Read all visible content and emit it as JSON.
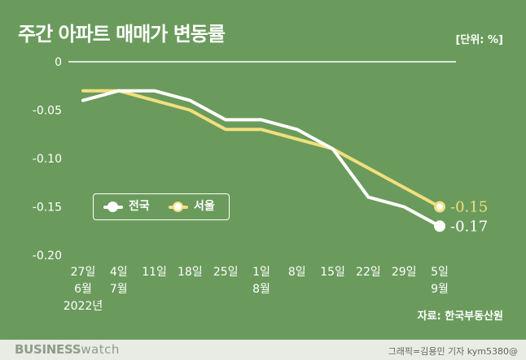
{
  "title": "주간 아파트 매매가 변동률",
  "unit_label": "[단위: %]",
  "source": "자료: 한국부동산원",
  "brand": {
    "bold": "BUSINESS",
    "light": "watch"
  },
  "credit": "그래픽=김용민 기자 kym5380@",
  "colors": {
    "background": "#6a9b5c",
    "national": "#ffffff",
    "seoul": "#f0df7e",
    "footer": "#e9ece4"
  },
  "chart_data": {
    "type": "line",
    "x_ticks": [
      [
        "27일",
        "6월",
        "2022년"
      ],
      [
        "4일",
        "7월"
      ],
      [
        "11일"
      ],
      [
        "18일"
      ],
      [
        "25일"
      ],
      [
        "1일",
        "8월"
      ],
      [
        "8일"
      ],
      [
        "15일"
      ],
      [
        "22일"
      ],
      [
        "29일"
      ],
      [
        "5일",
        "9월"
      ]
    ],
    "y_ticks": [
      "0",
      "-0.05",
      "-0.10",
      "-0.15",
      "-0.20"
    ],
    "ylim": [
      -0.2,
      0
    ],
    "series": [
      {
        "name": "전국",
        "color": "#ffffff",
        "values": [
          -0.04,
          -0.03,
          -0.03,
          -0.04,
          -0.06,
          -0.06,
          -0.07,
          -0.09,
          -0.14,
          -0.15,
          -0.17
        ],
        "end_label": "-0.17"
      },
      {
        "name": "서울",
        "color": "#f0df7e",
        "values": [
          -0.03,
          -0.03,
          -0.04,
          -0.05,
          -0.07,
          -0.07,
          -0.08,
          -0.09,
          -0.11,
          -0.13,
          -0.15
        ],
        "end_label": "-0.15"
      }
    ],
    "legend": "inside-lower-left",
    "grid": false
  }
}
